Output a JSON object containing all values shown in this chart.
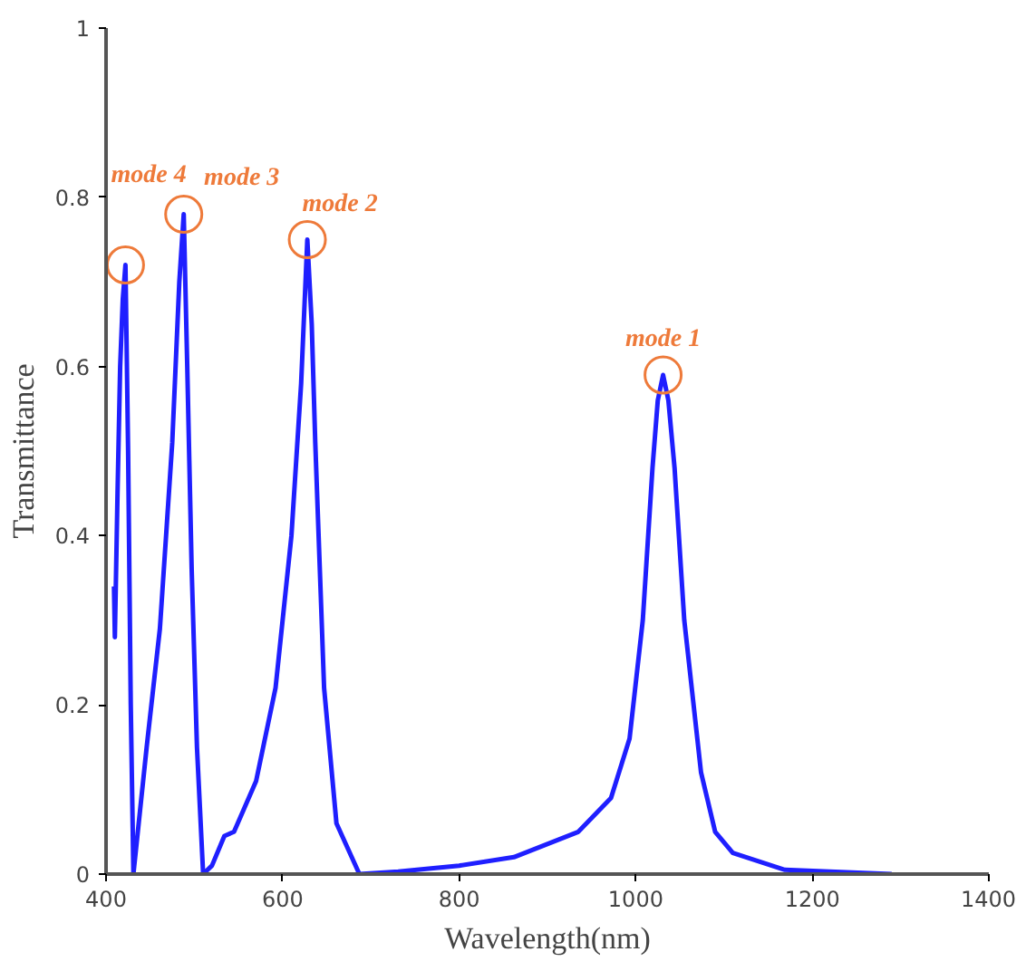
{
  "chart_data": {
    "type": "line",
    "xlabel": "Wavelength(nm)",
    "ylabel": "Transmittance",
    "xlim": [
      400,
      1400
    ],
    "ylim": [
      0,
      1
    ],
    "xticks": [
      400,
      600,
      800,
      1000,
      1200,
      1400
    ],
    "yticks": [
      0,
      0.2,
      0.4,
      0.6,
      0.8,
      1
    ],
    "series": [
      {
        "color": "#1f1fff",
        "x": [
          409,
          410,
          413,
          416,
          419,
          422,
          425,
          428,
          431,
          446,
          461,
          475,
          483,
          488,
          492,
          497,
          503,
          510,
          520,
          534,
          545,
          570,
          592,
          610,
          621,
          628,
          633,
          637,
          647,
          661,
          687,
          731,
          800,
          862,
          935,
          972,
          993,
          1008,
          1019,
          1025,
          1031,
          1037,
          1044,
          1055,
          1074,
          1090,
          1110,
          1169,
          1290
        ],
        "values": [
          0.34,
          0.28,
          0.45,
          0.6,
          0.68,
          0.72,
          0.5,
          0.2,
          0,
          0.15,
          0.29,
          0.51,
          0.7,
          0.78,
          0.6,
          0.36,
          0.15,
          0,
          0.01,
          0.045,
          0.05,
          0.11,
          0.22,
          0.4,
          0.58,
          0.75,
          0.65,
          0.51,
          0.22,
          0.06,
          0,
          0.003,
          0.01,
          0.02,
          0.05,
          0.09,
          0.16,
          0.3,
          0.48,
          0.56,
          0.59,
          0.56,
          0.48,
          0.3,
          0.12,
          0.05,
          0.025,
          0.005,
          0
        ]
      }
    ],
    "annotations": [
      {
        "text": "mode 1",
        "x": 1031,
        "y": 0.59
      },
      {
        "text": "mode 2",
        "x": 628,
        "y": 0.75
      },
      {
        "text": "mode 3",
        "x": 488,
        "y": 0.78
      },
      {
        "text": "mode 4",
        "x": 422,
        "y": 0.72
      }
    ]
  }
}
